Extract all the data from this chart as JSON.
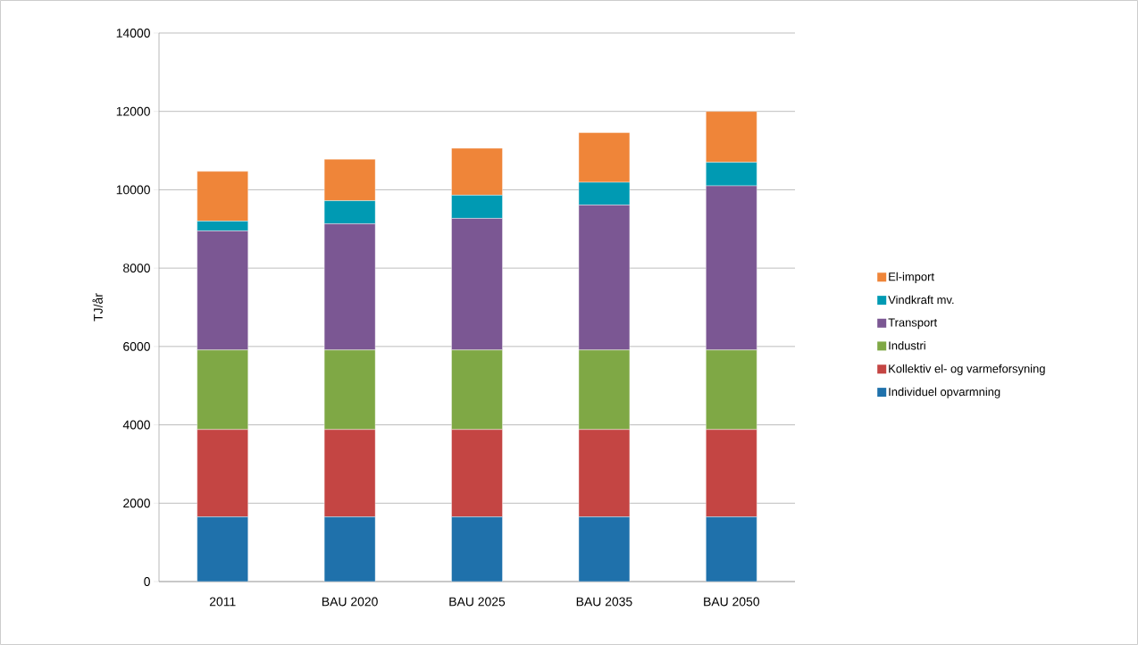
{
  "chart_data": {
    "type": "bar",
    "stacked": true,
    "ylabel": "TJ/år",
    "categories": [
      "2011",
      "BAU 2020",
      "BAU 2025",
      "BAU 2035",
      "BAU 2050"
    ],
    "series": [
      {
        "name": "Individuel opvarmning",
        "color": "#1f71ab",
        "values": [
          1650,
          1650,
          1650,
          1650,
          1650
        ]
      },
      {
        "name": "Kollektiv el- og varmeforsyning",
        "color": "#c44543",
        "values": [
          2230,
          2230,
          2230,
          2230,
          2230
        ]
      },
      {
        "name": "Industri",
        "color": "#7fa845",
        "values": [
          2030,
          2030,
          2030,
          2030,
          2030
        ]
      },
      {
        "name": "Transport",
        "color": "#7b5793",
        "values": [
          3040,
          3220,
          3360,
          3700,
          4190
        ]
      },
      {
        "name": "Vindkraft mv.",
        "color": "#009ab3",
        "values": [
          250,
          590,
          590,
          580,
          600
        ]
      },
      {
        "name": "El-import",
        "color": "#ef8539",
        "values": [
          1270,
          1060,
          1200,
          1270,
          1300
        ]
      }
    ],
    "ylim": [
      0,
      14000
    ],
    "yticks": [
      0,
      2000,
      4000,
      6000,
      8000,
      10000,
      12000,
      14000
    ],
    "grid": "y",
    "legend": "right"
  }
}
